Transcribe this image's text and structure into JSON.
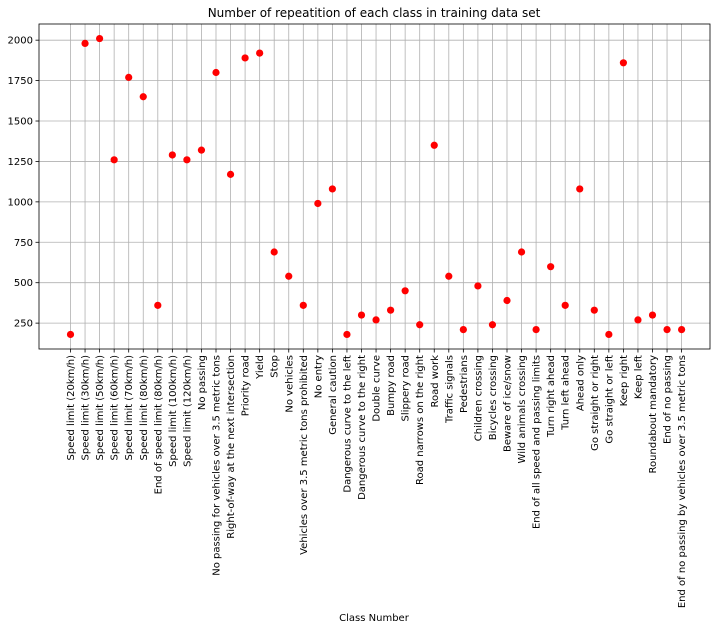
{
  "chart_data": {
    "type": "scatter",
    "title": "Number of repeatition of each class in training data set",
    "xlabel": "Class Number",
    "ylabel": "",
    "grid": true,
    "marker_color": "#ff0000",
    "y_ticks": [
      250,
      500,
      750,
      1000,
      1250,
      1500,
      1750,
      2000
    ],
    "y_tick_labels": [
      "250",
      "500",
      "750",
      "1000",
      "1250",
      "1500",
      "1750",
      "2000"
    ],
    "ylim": [
      90,
      2100
    ],
    "categories": [
      "Speed limit (20km/h)",
      "Speed limit (30km/h)",
      "Speed limit (50km/h)",
      "Speed limit (60km/h)",
      "Speed limit (70km/h)",
      "Speed limit (80km/h)",
      "End of speed limit (80km/h)",
      "Speed limit (100km/h)",
      "Speed limit (120km/h)",
      "No passing",
      "No passing for vehicles over 3.5 metric tons",
      "Right-of-way at the next intersection",
      "Priority road",
      "Yield",
      "Stop",
      "No vehicles",
      "Vehicles over 3.5 metric tons prohibited",
      "No entry",
      "General caution",
      "Dangerous curve to the left",
      "Dangerous curve to the right",
      "Double curve",
      "Bumpy road",
      "Slippery road",
      "Road narrows on the right",
      "Road work",
      "Traffic signals",
      "Pedestrians",
      "Children crossing",
      "Bicycles crossing",
      "Beware of ice/snow",
      "Wild animals crossing",
      "End of all speed and passing limits",
      "Turn right ahead",
      "Turn left ahead",
      "Ahead only",
      "Go straight or right",
      "Go straight or left",
      "Keep right",
      "Keep left",
      "Roundabout mandatory",
      "End of no passing",
      "End of no passing by vehicles over 3.5 metric tons"
    ],
    "values": [
      180,
      1980,
      2010,
      1260,
      1770,
      1650,
      360,
      1290,
      1260,
      1320,
      1800,
      1170,
      1890,
      1920,
      690,
      540,
      360,
      990,
      1080,
      180,
      300,
      270,
      330,
      450,
      240,
      1350,
      540,
      210,
      480,
      240,
      390,
      690,
      210,
      599,
      360,
      1080,
      330,
      180,
      1860,
      270,
      300,
      210,
      210
    ]
  }
}
